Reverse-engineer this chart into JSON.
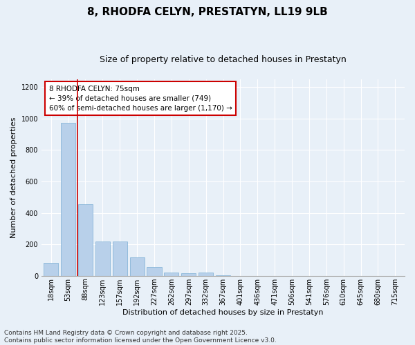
{
  "title": "8, RHODFA CELYN, PRESTATYN, LL19 9LB",
  "subtitle": "Size of property relative to detached houses in Prestatyn",
  "xlabel": "Distribution of detached houses by size in Prestatyn",
  "ylabel": "Number of detached properties",
  "bin_labels": [
    "18sqm",
    "53sqm",
    "88sqm",
    "123sqm",
    "157sqm",
    "192sqm",
    "227sqm",
    "262sqm",
    "297sqm",
    "332sqm",
    "367sqm",
    "401sqm",
    "436sqm",
    "471sqm",
    "506sqm",
    "541sqm",
    "576sqm",
    "610sqm",
    "645sqm",
    "680sqm",
    "715sqm"
  ],
  "bar_values": [
    80,
    975,
    455,
    220,
    220,
    115,
    55,
    20,
    18,
    20,
    5,
    0,
    0,
    0,
    0,
    0,
    0,
    0,
    0,
    0,
    0
  ],
  "bar_color": "#b8d0ea",
  "bar_edge_color": "#7aaed4",
  "vline_x_index": 1.55,
  "vline_color": "#cc0000",
  "annotation_text": "8 RHODFA CELYN: 75sqm\n← 39% of detached houses are smaller (749)\n60% of semi-detached houses are larger (1,170) →",
  "annotation_box_color": "#ffffff",
  "annotation_box_edge_color": "#cc0000",
  "ylim": [
    0,
    1250
  ],
  "yticks": [
    0,
    200,
    400,
    600,
    800,
    1000,
    1200
  ],
  "footer_line1": "Contains HM Land Registry data © Crown copyright and database right 2025.",
  "footer_line2": "Contains public sector information licensed under the Open Government Licence v3.0.",
  "background_color": "#e8f0f8",
  "plot_bg_color": "#e8f0f8",
  "title_fontsize": 11,
  "subtitle_fontsize": 9,
  "axis_label_fontsize": 8,
  "tick_fontsize": 7,
  "annotation_fontsize": 7.5,
  "footer_fontsize": 6.5
}
